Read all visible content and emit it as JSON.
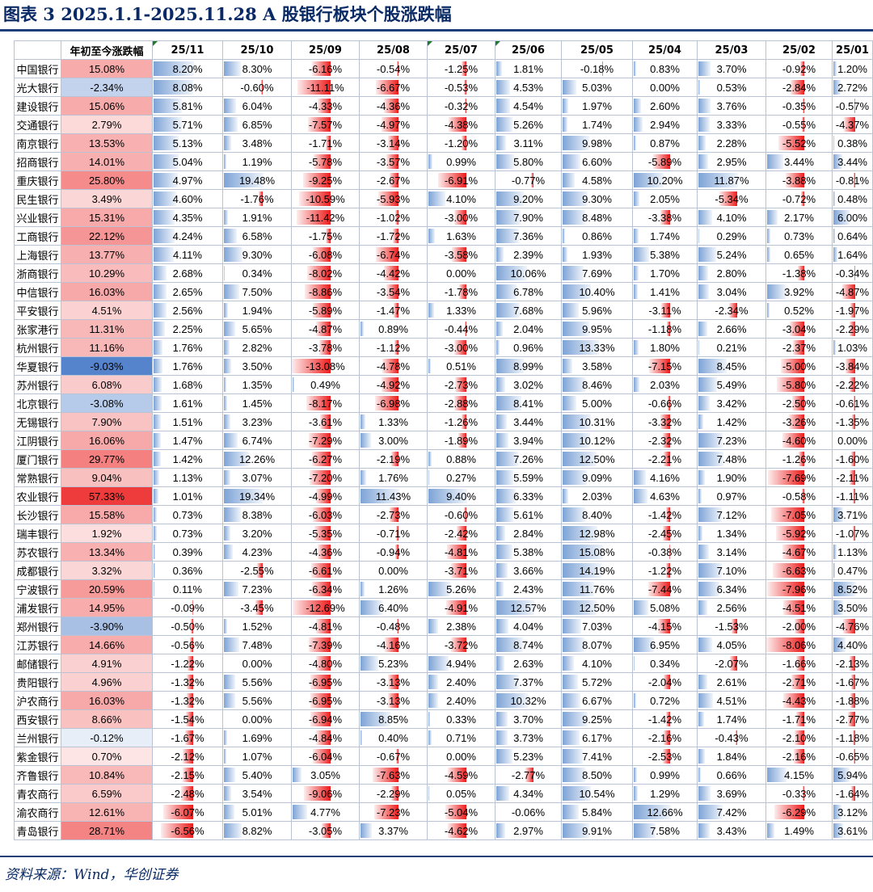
{
  "title": "图表 3   2025.1.1-2025.11.28   A 股银行板块个股涨跌幅",
  "source": "资料来源：Wind，华创证券",
  "columns": [
    "",
    "年初至今涨跌幅",
    "25/11",
    "25/10",
    "25/09",
    "25/08",
    "25/07",
    "25/06",
    "25/05",
    "25/04",
    "25/03",
    "25/02",
    "25/01"
  ],
  "rows": [
    [
      "中国银行",
      15.08,
      8.2,
      8.3,
      -6.16,
      -0.54,
      -1.25,
      1.81,
      -0.18,
      0.83,
      3.7,
      -0.92,
      1.2
    ],
    [
      "光大银行",
      -2.34,
      8.08,
      -0.6,
      -11.11,
      -6.67,
      -0.53,
      4.53,
      5.03,
      0.0,
      0.53,
      -2.84,
      2.72
    ],
    [
      "建设银行",
      15.06,
      5.81,
      6.04,
      -4.33,
      -4.36,
      -0.32,
      4.54,
      1.97,
      2.6,
      3.76,
      -0.35,
      -0.57
    ],
    [
      "交通银行",
      2.79,
      5.71,
      6.85,
      -7.57,
      -4.97,
      -4.38,
      5.26,
      1.74,
      2.94,
      3.33,
      -0.55,
      -4.37
    ],
    [
      "南京银行",
      13.53,
      5.13,
      3.48,
      -1.71,
      -3.14,
      -1.2,
      3.11,
      9.98,
      0.87,
      2.28,
      -5.52,
      0.38
    ],
    [
      "招商银行",
      14.01,
      5.04,
      1.19,
      -5.78,
      -3.57,
      0.99,
      5.8,
      6.6,
      -5.89,
      2.95,
      3.44,
      3.44
    ],
    [
      "重庆银行",
      25.8,
      4.97,
      19.48,
      -9.25,
      -2.67,
      -6.91,
      -0.77,
      4.58,
      10.2,
      11.87,
      -3.88,
      -0.81
    ],
    [
      "民生银行",
      3.49,
      4.6,
      -1.76,
      -10.59,
      -5.93,
      4.1,
      9.2,
      9.3,
      2.05,
      -5.34,
      -0.72,
      0.48
    ],
    [
      "兴业银行",
      15.31,
      4.35,
      1.91,
      -11.42,
      -1.02,
      -3.0,
      7.9,
      8.48,
      -3.38,
      4.1,
      2.17,
      6.0
    ],
    [
      "工商银行",
      22.12,
      4.24,
      6.58,
      -1.75,
      -1.72,
      1.63,
      7.36,
      0.86,
      1.74,
      0.29,
      0.73,
      0.64
    ],
    [
      "上海银行",
      13.77,
      4.11,
      9.3,
      -6.08,
      -6.74,
      -3.58,
      2.39,
      1.93,
      5.38,
      5.24,
      0.65,
      1.64
    ],
    [
      "浙商银行",
      10.29,
      2.68,
      0.34,
      -8.02,
      -4.42,
      0.0,
      10.06,
      7.69,
      1.7,
      2.8,
      -1.38,
      -0.34
    ],
    [
      "中信银行",
      16.03,
      2.65,
      7.5,
      -8.86,
      -3.54,
      -1.78,
      6.78,
      10.4,
      1.41,
      3.04,
      3.92,
      -4.87
    ],
    [
      "平安银行",
      4.51,
      2.56,
      1.94,
      -5.89,
      -1.47,
      1.33,
      7.68,
      5.96,
      -3.11,
      -2.34,
      0.52,
      -1.97
    ],
    [
      "张家港行",
      11.31,
      2.25,
      5.65,
      -4.87,
      0.89,
      -0.44,
      2.04,
      9.95,
      -1.18,
      2.66,
      -3.04,
      -2.29
    ],
    [
      "杭州银行",
      11.16,
      1.76,
      2.82,
      -3.78,
      -1.12,
      -3.0,
      0.96,
      13.33,
      1.8,
      0.21,
      -2.37,
      1.03
    ],
    [
      "华夏银行",
      -9.03,
      1.76,
      3.5,
      -13.08,
      -4.78,
      0.51,
      8.99,
      3.58,
      -7.15,
      8.45,
      -5.0,
      -3.84
    ],
    [
      "苏州银行",
      6.08,
      1.68,
      1.35,
      0.49,
      -4.92,
      -2.73,
      3.02,
      8.46,
      2.03,
      5.49,
      -5.8,
      -2.22
    ],
    [
      "北京银行",
      -3.08,
      1.61,
      1.45,
      -8.17,
      -6.98,
      -2.88,
      8.41,
      5.0,
      -0.66,
      3.42,
      -2.5,
      -0.61
    ],
    [
      "无锡银行",
      7.9,
      1.51,
      3.23,
      -3.61,
      1.33,
      -1.26,
      3.44,
      10.31,
      -3.32,
      1.42,
      -3.26,
      -1.35
    ],
    [
      "江阴银行",
      16.06,
      1.47,
      6.74,
      -7.29,
      3.0,
      -1.89,
      3.94,
      10.12,
      -2.32,
      7.23,
      -4.6,
      0.0
    ],
    [
      "厦门银行",
      29.77,
      1.42,
      12.26,
      -6.27,
      -2.19,
      0.88,
      7.26,
      12.5,
      -2.21,
      7.48,
      -1.26,
      -1.6
    ],
    [
      "常熟银行",
      9.04,
      1.13,
      3.07,
      -7.2,
      1.76,
      0.27,
      5.59,
      9.09,
      4.16,
      1.9,
      -7.69,
      -2.11
    ],
    [
      "农业银行",
      57.33,
      1.01,
      19.34,
      -4.99,
      11.43,
      9.4,
      6.33,
      2.03,
      4.63,
      0.97,
      -0.58,
      -1.11
    ],
    [
      "长沙银行",
      15.58,
      0.73,
      8.38,
      -6.03,
      -2.73,
      -0.6,
      5.61,
      8.4,
      -1.42,
      7.12,
      -7.05,
      3.71
    ],
    [
      "瑞丰银行",
      1.92,
      0.73,
      3.2,
      -5.35,
      -0.71,
      -2.42,
      2.84,
      12.98,
      -2.45,
      1.34,
      -5.92,
      -1.07
    ],
    [
      "苏农银行",
      13.34,
      0.39,
      4.23,
      -4.36,
      -0.94,
      -4.81,
      5.38,
      15.08,
      -0.38,
      3.14,
      -4.67,
      1.13
    ],
    [
      "成都银行",
      3.32,
      0.36,
      -2.55,
      -6.61,
      0.0,
      -3.71,
      3.66,
      14.19,
      -1.22,
      7.1,
      -6.63,
      0.47
    ],
    [
      "宁波银行",
      20.59,
      0.11,
      7.23,
      -6.34,
      1.26,
      5.26,
      2.43,
      11.76,
      -7.44,
      6.34,
      -7.96,
      8.52
    ],
    [
      "浦发银行",
      14.95,
      -0.09,
      -3.45,
      -12.69,
      6.4,
      -4.91,
      12.57,
      12.5,
      5.08,
      2.56,
      -4.51,
      3.5
    ],
    [
      "郑州银行",
      -3.9,
      -0.5,
      1.52,
      -4.81,
      -0.48,
      2.38,
      4.04,
      7.03,
      -4.15,
      -1.53,
      -2.0,
      -4.76
    ],
    [
      "江苏银行",
      14.66,
      -0.56,
      7.48,
      -7.39,
      -4.16,
      -3.72,
      8.74,
      8.07,
      6.95,
      4.05,
      -8.06,
      4.4
    ],
    [
      "邮储银行",
      4.91,
      -1.22,
      0.0,
      -4.8,
      5.23,
      4.94,
      2.63,
      4.1,
      0.34,
      -2.07,
      -1.66,
      -2.13
    ],
    [
      "贵阳银行",
      4.96,
      -1.32,
      5.56,
      -6.95,
      -3.13,
      2.4,
      7.37,
      5.72,
      -2.04,
      2.61,
      -2.71,
      -1.67
    ],
    [
      "沪农商行",
      16.03,
      -1.32,
      5.56,
      -6.95,
      -3.13,
      2.4,
      10.32,
      6.67,
      0.72,
      4.51,
      -4.43,
      -1.88
    ],
    [
      "西安银行",
      8.66,
      -1.54,
      0.0,
      -6.94,
      8.85,
      0.33,
      3.7,
      9.25,
      -1.42,
      1.74,
      -1.71,
      -2.77
    ],
    [
      "兰州银行",
      -0.12,
      -1.67,
      1.69,
      -4.84,
      0.4,
      0.71,
      3.73,
      6.17,
      -2.16,
      -0.43,
      -2.1,
      -1.18
    ],
    [
      "紫金银行",
      0.7,
      -2.12,
      1.07,
      -6.04,
      -0.67,
      0.0,
      5.23,
      7.41,
      -2.53,
      1.84,
      -2.16,
      -0.65
    ],
    [
      "齐鲁银行",
      10.84,
      -2.15,
      5.4,
      3.05,
      -7.63,
      -4.59,
      -2.77,
      8.5,
      0.99,
      0.66,
      4.15,
      5.94
    ],
    [
      "青农商行",
      6.59,
      -2.48,
      3.54,
      -9.06,
      -2.29,
      0.05,
      4.34,
      10.54,
      1.29,
      3.69,
      -0.33,
      -1.64
    ],
    [
      "渝农商行",
      12.61,
      -6.07,
      5.01,
      4.77,
      -7.23,
      -5.04,
      -0.06,
      5.84,
      12.66,
      7.42,
      -6.29,
      3.12
    ],
    [
      "青岛银行",
      28.71,
      -6.56,
      8.82,
      -3.05,
      3.37,
      -4.62,
      2.97,
      9.91,
      7.58,
      3.43,
      1.49,
      3.61
    ]
  ]
}
